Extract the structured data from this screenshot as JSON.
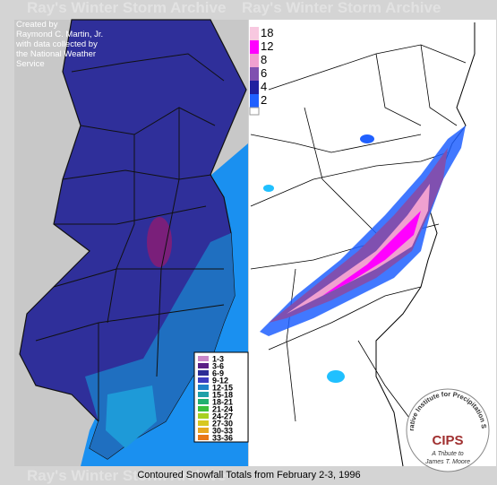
{
  "watermark": "Ray's Winter Storm Archive",
  "credit": [
    "Created by",
    "Raymond C. Martin, Jr.",
    "with data collected by",
    "the National Weather",
    "Service"
  ],
  "legend": [
    {
      "label": "1-3",
      "color": "#c987c9"
    },
    {
      "label": "3-6",
      "color": "#5a1f86"
    },
    {
      "label": "6-9",
      "color": "#2c2c96"
    },
    {
      "label": "9-12",
      "color": "#3c3cc0"
    },
    {
      "label": "12-15",
      "color": "#1e82c8"
    },
    {
      "label": "15-18",
      "color": "#1fa0a8"
    },
    {
      "label": "18-21",
      "color": "#22b070"
    },
    {
      "label": "21-24",
      "color": "#3cc03c"
    },
    {
      "label": "24-27",
      "color": "#a8d020"
    },
    {
      "label": "27-30",
      "color": "#d8c820"
    },
    {
      "label": "30-33",
      "color": "#e8a820"
    },
    {
      "label": "33-36",
      "color": "#e87818"
    }
  ],
  "colorbar": [
    {
      "label": "18",
      "color": "#f8c8e0"
    },
    {
      "label": "12",
      "color": "#ff00ff"
    },
    {
      "label": "8",
      "color": "#f0a0d0"
    },
    {
      "label": "6",
      "color": "#8050b0"
    },
    {
      "label": "4",
      "color": "#2020a0"
    },
    {
      "label": "2",
      "color": "#2060ff"
    }
  ],
  "caption": "Contoured Snowfall Totals from February 2-3, 1996",
  "logo": {
    "ring": "Cooperative Institute for Precipitation Systems",
    "name": "CIPS",
    "line1": "A Tribute to",
    "line2": "James T. Moore"
  }
}
